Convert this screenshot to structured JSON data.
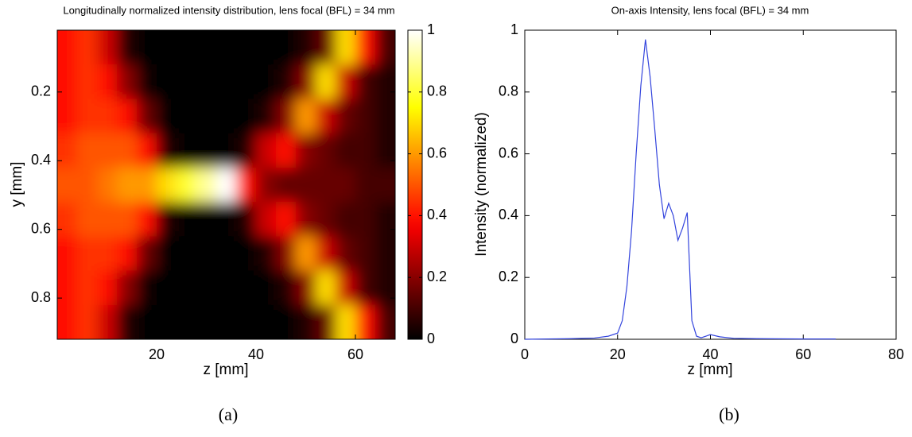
{
  "chart_data": [
    {
      "type": "heatmap",
      "title": "Longitudinally normalized intensity distribution, lens focal (BFL) = 34 mm",
      "xlabel": "z [mm]",
      "ylabel": "y [mm]",
      "caption": "(a)",
      "colormap": "hot",
      "x": [
        2,
        6,
        10,
        14,
        18,
        22,
        26,
        30,
        34,
        38,
        42,
        46,
        50,
        54,
        58,
        62,
        66
      ],
      "y": [
        0.07,
        0.17,
        0.27,
        0.37,
        0.47,
        0.57,
        0.67,
        0.77,
        0.87
      ],
      "values": [
        [
          0.4,
          0.45,
          0.3,
          0.05,
          0,
          0,
          0,
          0,
          0,
          0,
          0,
          0,
          0.05,
          0.15,
          0.7,
          0.4,
          0.1
        ],
        [
          0.4,
          0.45,
          0.4,
          0.2,
          0.02,
          0,
          0,
          0,
          0,
          0,
          0,
          0.05,
          0.2,
          0.7,
          0.3,
          0.1,
          0.05
        ],
        [
          0.4,
          0.45,
          0.45,
          0.4,
          0.15,
          0,
          0,
          0,
          0,
          0,
          0.05,
          0.2,
          0.6,
          0.3,
          0.15,
          0.1,
          0.05
        ],
        [
          0.45,
          0.5,
          0.5,
          0.5,
          0.4,
          0.05,
          0,
          0,
          0,
          0.05,
          0.3,
          0.4,
          0.2,
          0.15,
          0.1,
          0.1,
          0.05
        ],
        [
          0.5,
          0.5,
          0.55,
          0.6,
          0.6,
          0.7,
          0.8,
          0.9,
          1,
          0.4,
          0.2,
          0.15,
          0.15,
          0.15,
          0.15,
          0.1,
          0.1
        ],
        [
          0.45,
          0.5,
          0.5,
          0.5,
          0.4,
          0.05,
          0,
          0,
          0,
          0.05,
          0.3,
          0.4,
          0.2,
          0.15,
          0.1,
          0.1,
          0.05
        ],
        [
          0.4,
          0.45,
          0.45,
          0.4,
          0.15,
          0,
          0,
          0,
          0,
          0,
          0.05,
          0.2,
          0.6,
          0.3,
          0.15,
          0.1,
          0.05
        ],
        [
          0.4,
          0.45,
          0.4,
          0.2,
          0.02,
          0,
          0,
          0,
          0,
          0,
          0,
          0.05,
          0.2,
          0.7,
          0.3,
          0.1,
          0.05
        ],
        [
          0.4,
          0.45,
          0.3,
          0.05,
          0,
          0,
          0,
          0,
          0,
          0,
          0,
          0,
          0.05,
          0.15,
          0.7,
          0.4,
          0.1
        ]
      ],
      "xlim": [
        0,
        68
      ],
      "ylim": [
        0.02,
        0.92
      ],
      "y_inverted": true,
      "xticks": [
        20,
        40,
        60
      ],
      "yticks": [
        0.2,
        0.4,
        0.6,
        0.8
      ],
      "clim": [
        0,
        1
      ],
      "cticks": [
        0,
        0.2,
        0.4,
        0.6,
        0.8,
        1
      ]
    },
    {
      "type": "line",
      "title": "On-axis Intensity, lens focal (BFL) = 34 mm",
      "xlabel": "z [mm]",
      "ylabel": "Intensity (normalized)",
      "caption": "(b)",
      "color": "#3344dd",
      "x": [
        0,
        5,
        10,
        15,
        18,
        20,
        21,
        22,
        23,
        24,
        25,
        26,
        27,
        28,
        29,
        30,
        31,
        32,
        33,
        34,
        35,
        36,
        37,
        38,
        40,
        42,
        45,
        50,
        60,
        67
      ],
      "values": [
        0,
        0.001,
        0.002,
        0.004,
        0.01,
        0.02,
        0.06,
        0.17,
        0.35,
        0.6,
        0.82,
        0.97,
        0.85,
        0.68,
        0.5,
        0.39,
        0.44,
        0.4,
        0.32,
        0.36,
        0.41,
        0.06,
        0.01,
        0.005,
        0.015,
        0.008,
        0.003,
        0.002,
        0.001,
        0.001
      ],
      "xlim": [
        0,
        80
      ],
      "ylim": [
        0,
        1
      ],
      "xticks": [
        0,
        20,
        40,
        60,
        80
      ],
      "yticks": [
        0,
        0.2,
        0.4,
        0.6,
        0.8,
        1
      ]
    }
  ]
}
